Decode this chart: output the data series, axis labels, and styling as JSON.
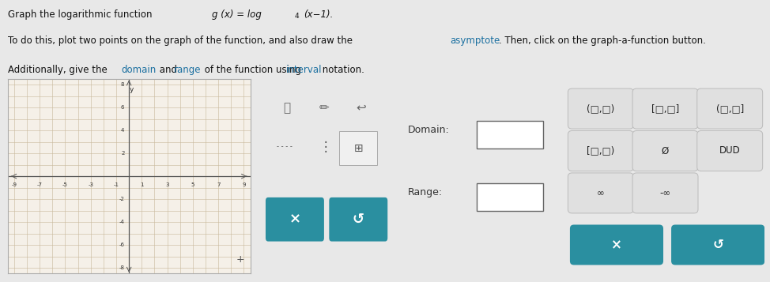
{
  "title_line1": "Graph the logarithmic function ",
  "func_italic": "g (x) = log",
  "func_sub": "4",
  "func_end": "(x−1).",
  "line2a": "To do this, plot two points on the graph of the function, and also draw the ",
  "line2b": "asymptote",
  "line2c": ". Then, click on the graph-a-function button.",
  "line3a": "Additionally, give the ",
  "line3b": "domain",
  "line3c": " and ",
  "line3d": "range",
  "line3e": " of the function using ",
  "line3f": "interval",
  "line3g": " notation.",
  "bg_color": "#e8e8e8",
  "panel_bg": "#ffffff",
  "grid_bg": "#f5f0e8",
  "grid_line_color": "#c8b89a",
  "axis_color": "#555555",
  "teal_color": "#2a8fa0",
  "link_color": "#1a6fa0",
  "text_color": "#111111",
  "x_range": [
    -9,
    9
  ],
  "y_range": [
    -8,
    8
  ],
  "tick_interval": 2,
  "domain_label": "Domain:",
  "range_label": "Range:",
  "interval_row1": [
    "(□,□)",
    "[□,□]",
    "(□,□]"
  ],
  "interval_row2": [
    "[□,□)",
    "Ø",
    "DUD"
  ],
  "interval_row3": [
    "∞",
    "-∞"
  ]
}
